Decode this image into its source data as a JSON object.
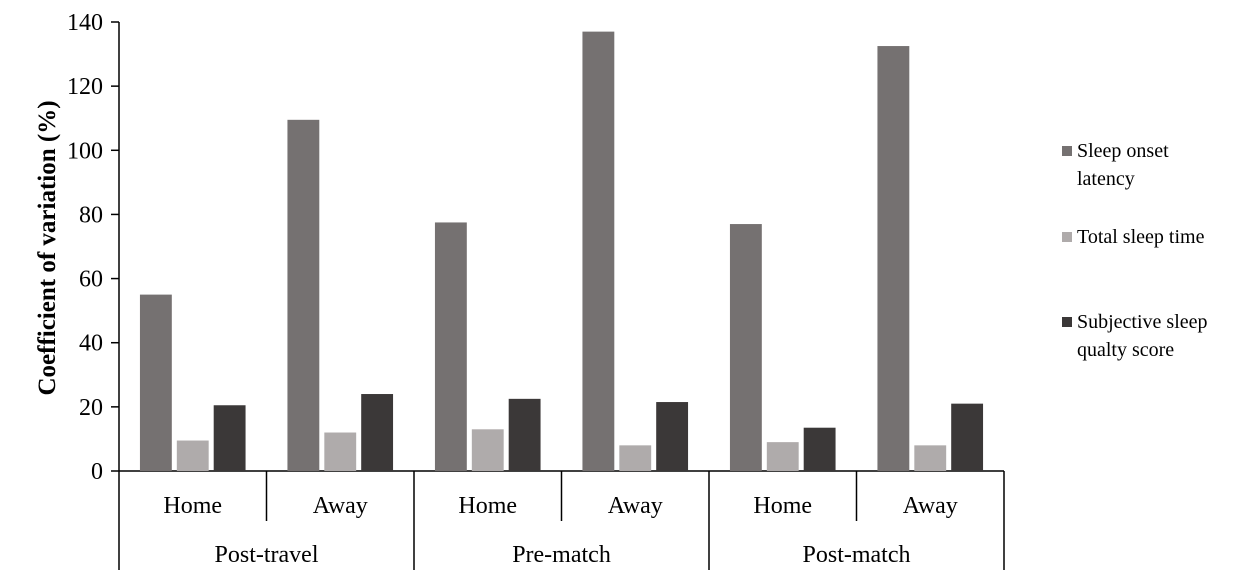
{
  "chart_data": {
    "type": "bar",
    "ylabel": "Coefficient of variation (%)",
    "xlabel": "",
    "ylim": [
      0,
      140
    ],
    "yticks": [
      0,
      20,
      40,
      60,
      80,
      100,
      120,
      140
    ],
    "grid": false,
    "legend_position": "right",
    "groups": [
      {
        "label": "Post-travel",
        "categories": [
          "Home",
          "Away"
        ]
      },
      {
        "label": "Pre-match",
        "categories": [
          "Home",
          "Away"
        ]
      },
      {
        "label": "Post-match",
        "categories": [
          "Home",
          "Away"
        ]
      }
    ],
    "series": [
      {
        "name": "Sleep onset latency",
        "color": "#757171",
        "values": [
          55,
          109.5,
          77.5,
          137,
          77,
          132.5
        ]
      },
      {
        "name": "Total sleep time",
        "color": "#afabab",
        "values": [
          9.5,
          12,
          13,
          8,
          9,
          8
        ]
      },
      {
        "name": "Subjective sleep qualty score",
        "color": "#3b3838",
        "values": [
          20.5,
          24,
          22.5,
          21.5,
          13.5,
          21
        ]
      }
    ]
  }
}
